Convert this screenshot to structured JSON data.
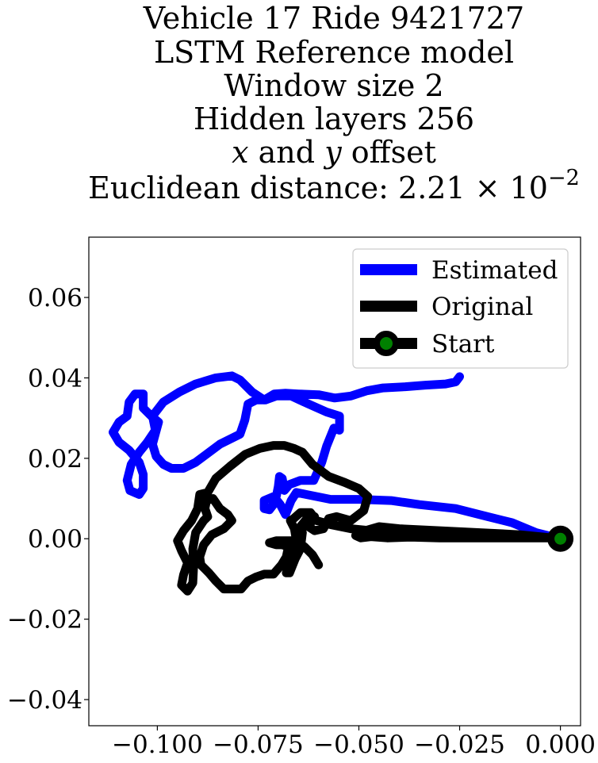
{
  "chart_data": {
    "type": "line",
    "title_lines": [
      "Vehicle 17 Ride 9421727",
      "LSTM Reference model",
      "Window size 2",
      "Hidden layers 256",
      "x and y offset",
      "Euclidean distance: 2.21 × 10⁻²"
    ],
    "title_parts": {
      "x_var": "x",
      "and": " and ",
      "y_var": "y",
      "offset": " offset",
      "dist_prefix": "Euclidean distance: 2.21 × 10",
      "dist_exp": "−2"
    },
    "xlim": [
      -0.117,
      0.005
    ],
    "ylim": [
      -0.0465,
      0.075
    ],
    "xticks": [
      -0.1,
      -0.075,
      -0.05,
      -0.025,
      0.0
    ],
    "xtick_labels": [
      "−0.100",
      "−0.075",
      "−0.050",
      "−0.025",
      "0.000"
    ],
    "yticks": [
      -0.04,
      -0.02,
      0.0,
      0.02,
      0.04,
      0.06
    ],
    "ytick_labels": [
      "−0.04",
      "−0.02",
      "0.00",
      "0.02",
      "0.04",
      "0.06"
    ],
    "grid": false,
    "legend_position": "top-right",
    "series": [
      {
        "name": "Estimated",
        "color": "#0000ff",
        "points": [
          [
            0.0,
            0.0
          ],
          [
            -0.006,
            0.0015
          ],
          [
            -0.012,
            0.004
          ],
          [
            -0.018,
            0.0055
          ],
          [
            -0.026,
            0.0075
          ],
          [
            -0.035,
            0.0085
          ],
          [
            -0.042,
            0.0095
          ],
          [
            -0.05,
            0.0098
          ],
          [
            -0.057,
            0.0098
          ],
          [
            -0.063,
            0.011
          ],
          [
            -0.0655,
            0.0115
          ],
          [
            -0.0668,
            0.0095
          ],
          [
            -0.0682,
            0.006
          ],
          [
            -0.0695,
            0.0085
          ],
          [
            -0.0711,
            0.0105
          ],
          [
            -0.0735,
            0.0095
          ],
          [
            -0.0735,
            0.0075
          ],
          [
            -0.0722,
            0.0072
          ],
          [
            -0.0708,
            0.009
          ],
          [
            -0.07,
            0.013
          ],
          [
            -0.0697,
            0.0155
          ],
          [
            -0.069,
            0.015
          ],
          [
            -0.0685,
            0.012
          ],
          [
            -0.0672,
            0.0135
          ],
          [
            -0.0645,
            0.0145
          ],
          [
            -0.0612,
            0.0145
          ],
          [
            -0.0592,
            0.019
          ],
          [
            -0.058,
            0.023
          ],
          [
            -0.0562,
            0.0275
          ],
          [
            -0.0548,
            0.027
          ],
          [
            -0.0548,
            0.0305
          ],
          [
            -0.058,
            0.0315
          ],
          [
            -0.0625,
            0.0335
          ],
          [
            -0.0668,
            0.0355
          ],
          [
            -0.0705,
            0.0355
          ],
          [
            -0.0732,
            0.0345
          ],
          [
            -0.0755,
            0.0345
          ],
          [
            -0.0775,
            0.0335
          ],
          [
            -0.0783,
            0.0295
          ],
          [
            -0.0795,
            0.026
          ],
          [
            -0.0845,
            0.0235
          ],
          [
            -0.0905,
            0.019
          ],
          [
            -0.0935,
            0.0175
          ],
          [
            -0.0965,
            0.0175
          ],
          [
            -0.0985,
            0.0185
          ],
          [
            -0.1003,
            0.0205
          ],
          [
            -0.1012,
            0.0235
          ],
          [
            -0.0997,
            0.029
          ],
          [
            -0.1015,
            0.0305
          ],
          [
            -0.1035,
            0.0325
          ],
          [
            -0.1035,
            0.036
          ],
          [
            -0.1055,
            0.036
          ],
          [
            -0.107,
            0.034
          ],
          [
            -0.1075,
            0.0305
          ],
          [
            -0.1095,
            0.029
          ],
          [
            -0.111,
            0.0265
          ],
          [
            -0.1095,
            0.024
          ],
          [
            -0.107,
            0.022
          ],
          [
            -0.1045,
            0.019
          ],
          [
            -0.1035,
            0.016
          ],
          [
            -0.1035,
            0.0125
          ],
          [
            -0.1045,
            0.011
          ],
          [
            -0.1068,
            0.012
          ],
          [
            -0.1075,
            0.0145
          ],
          [
            -0.1065,
            0.0185
          ],
          [
            -0.1045,
            0.0215
          ],
          [
            -0.1025,
            0.024
          ],
          [
            -0.1005,
            0.027
          ],
          [
            -0.1012,
            0.0305
          ],
          [
            -0.0985,
            0.034
          ],
          [
            -0.0945,
            0.0365
          ],
          [
            -0.0905,
            0.0385
          ],
          [
            -0.0855,
            0.04
          ],
          [
            -0.0815,
            0.0405
          ],
          [
            -0.0795,
            0.0395
          ],
          [
            -0.0765,
            0.0365
          ],
          [
            -0.0735,
            0.0345
          ],
          [
            -0.071,
            0.036
          ],
          [
            -0.0682,
            0.0362
          ],
          [
            -0.065,
            0.036
          ],
          [
            -0.06,
            0.0358
          ],
          [
            -0.056,
            0.035
          ],
          [
            -0.052,
            0.0355
          ],
          [
            -0.048,
            0.0368
          ],
          [
            -0.044,
            0.0375
          ],
          [
            -0.0385,
            0.0378
          ],
          [
            -0.0335,
            0.0382
          ],
          [
            -0.0285,
            0.0385
          ],
          [
            -0.026,
            0.039
          ],
          [
            -0.025,
            0.0403
          ]
        ]
      },
      {
        "name": "Original",
        "color": "#000000",
        "points": [
          [
            0.0,
            0.0
          ],
          [
            -0.01,
            0.001
          ],
          [
            -0.02,
            0.0015
          ],
          [
            -0.03,
            0.002
          ],
          [
            -0.04,
            0.0025
          ],
          [
            -0.045,
            0.003
          ],
          [
            -0.0485,
            0.002
          ],
          [
            -0.0508,
            0.0008
          ],
          [
            -0.0495,
            0.0002
          ],
          [
            -0.047,
            0.0005
          ],
          [
            -0.043,
            0.0002
          ],
          [
            -0.037,
            0.0004
          ],
          [
            -0.03,
            0.0002
          ],
          [
            -0.018,
            0.0002
          ],
          [
            -0.008,
            0.0002
          ],
          [
            -0.003,
            0.0002
          ],
          [
            -0.0095,
            0.0004
          ],
          [
            -0.022,
            0.0004
          ],
          [
            -0.034,
            0.0006
          ],
          [
            -0.0425,
            0.001
          ],
          [
            -0.047,
            0.002
          ],
          [
            -0.052,
            0.0025
          ],
          [
            -0.057,
            0.0035
          ],
          [
            -0.0605,
            0.0045
          ],
          [
            -0.062,
            0.0065
          ],
          [
            -0.0645,
            0.0065
          ],
          [
            -0.0662,
            0.005
          ],
          [
            -0.067,
            0.0045
          ],
          [
            -0.066,
            0.0025
          ],
          [
            -0.0655,
            -0.0005
          ],
          [
            -0.066,
            -0.0035
          ],
          [
            -0.067,
            -0.0055
          ],
          [
            -0.068,
            -0.0085
          ],
          [
            -0.0672,
            -0.0085
          ],
          [
            -0.0658,
            -0.005
          ],
          [
            -0.0645,
            -0.0025
          ],
          [
            -0.064,
            0.0015
          ],
          [
            -0.0645,
            0.003
          ],
          [
            -0.0625,
            0.0055
          ],
          [
            -0.061,
            0.0055
          ],
          [
            -0.0625,
            0.003
          ],
          [
            -0.061,
            0.002
          ],
          [
            -0.0588,
            0.0025
          ],
          [
            -0.0575,
            0.005
          ],
          [
            -0.0555,
            0.0055
          ],
          [
            -0.052,
            0.0045
          ],
          [
            -0.0488,
            0.007
          ],
          [
            -0.0478,
            0.0105
          ],
          [
            -0.05,
            0.0125
          ],
          [
            -0.0535,
            0.014
          ],
          [
            -0.0575,
            0.0155
          ],
          [
            -0.0615,
            0.0185
          ],
          [
            -0.064,
            0.0215
          ],
          [
            -0.0662,
            0.0225
          ],
          [
            -0.0685,
            0.0232
          ],
          [
            -0.0712,
            0.0232
          ],
          [
            -0.0745,
            0.0225
          ],
          [
            -0.0782,
            0.021
          ],
          [
            -0.082,
            0.018
          ],
          [
            -0.0855,
            0.015
          ],
          [
            -0.0875,
            0.0115
          ],
          [
            -0.0895,
            0.011
          ],
          [
            -0.09,
            0.0075
          ],
          [
            -0.0915,
            0.0045
          ],
          [
            -0.0935,
            0.002
          ],
          [
            -0.095,
            -0.0005
          ],
          [
            -0.094,
            -0.003
          ],
          [
            -0.0925,
            -0.006
          ],
          [
            -0.0935,
            -0.009
          ],
          [
            -0.094,
            -0.0115
          ],
          [
            -0.0925,
            -0.013
          ],
          [
            -0.0912,
            -0.011
          ],
          [
            -0.091,
            -0.007
          ],
          [
            -0.0912,
            -0.0025
          ],
          [
            -0.0905,
            0.0015
          ],
          [
            -0.0885,
            0.0045
          ],
          [
            -0.0875,
            0.0055
          ],
          [
            -0.0882,
            0.0075
          ],
          [
            -0.0878,
            0.0095
          ],
          [
            -0.0862,
            0.01
          ],
          [
            -0.0845,
            0.0075
          ],
          [
            -0.0825,
            0.006
          ],
          [
            -0.0815,
            0.0045
          ],
          [
            -0.0835,
            0.0025
          ],
          [
            -0.0865,
            0.001
          ],
          [
            -0.0885,
            -0.0015
          ],
          [
            -0.0895,
            -0.0045
          ],
          [
            -0.0892,
            -0.0065
          ],
          [
            -0.0872,
            -0.0085
          ],
          [
            -0.0855,
            -0.0105
          ],
          [
            -0.0835,
            -0.0125
          ],
          [
            -0.081,
            -0.0125
          ],
          [
            -0.0792,
            -0.0125
          ],
          [
            -0.0775,
            -0.0105
          ],
          [
            -0.0755,
            -0.0095
          ],
          [
            -0.0735,
            -0.0088
          ],
          [
            -0.0712,
            -0.0088
          ],
          [
            -0.0692,
            -0.0065
          ],
          [
            -0.068,
            -0.0045
          ],
          [
            -0.0675,
            -0.002
          ],
          [
            -0.069,
            -0.0015
          ],
          [
            -0.0705,
            -0.0015
          ],
          [
            -0.0722,
            -0.001
          ],
          [
            -0.0705,
            -0.0005
          ],
          [
            -0.0685,
            -0.0005
          ],
          [
            -0.067,
            -0.0005
          ],
          [
            -0.0655,
            -0.0005
          ],
          [
            -0.0635,
            -0.002
          ],
          [
            -0.0615,
            -0.004
          ],
          [
            -0.06,
            -0.0065
          ]
        ]
      },
      {
        "name": "Start",
        "color": "#000000",
        "marker_face": "#008000",
        "points": [
          [
            0.0,
            0.0
          ]
        ]
      }
    ]
  }
}
